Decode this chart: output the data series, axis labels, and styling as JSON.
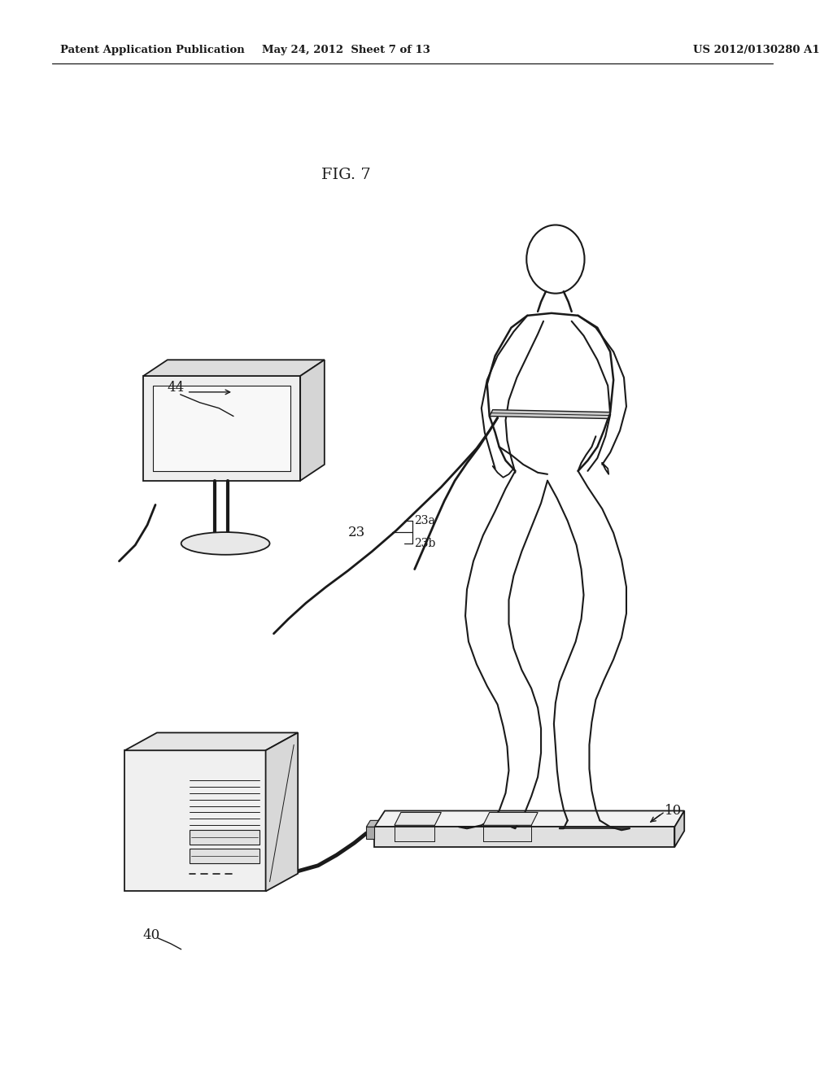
{
  "fig_label": "FIG. 7",
  "header_left": "Patent Application Publication",
  "header_mid": "May 24, 2012  Sheet 7 of 13",
  "header_right": "US 2012/0130280 A1",
  "bg_color": "#ffffff",
  "line_color": "#1a1a1a",
  "text_color": "#1a1a1a",
  "lw_body": 1.5,
  "lw_obj": 1.3
}
